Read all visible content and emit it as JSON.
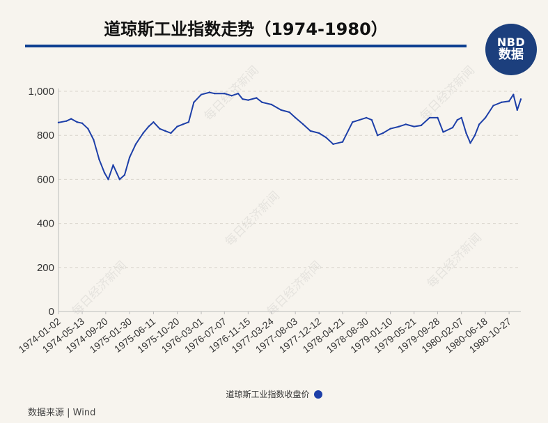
{
  "header": {
    "title": "道琼斯工业指数走势（1974-1980）",
    "logo_line1": "NBD",
    "logo_line2": "数据"
  },
  "watermark": "每日经济新闻",
  "footer": {
    "source": "数据来源 | Wind"
  },
  "colors": {
    "line": "#1d3fa8",
    "title_rule": "#0d3f91",
    "logo_bg": "#1c3f7d",
    "background": "#f7f4ee"
  },
  "chart_data": {
    "type": "line",
    "title": "道琼斯工业指数走势（1974-1980）",
    "ylim": [
      0,
      1000
    ],
    "y_ticks": [
      "0",
      "200",
      "400",
      "600",
      "800",
      "1,000"
    ],
    "y_tick_values": [
      0,
      200,
      400,
      600,
      800,
      1000
    ],
    "grid": true,
    "legend_position": "bottom",
    "x_tick_labels": [
      "1974-01-02",
      "1974-05-13",
      "1974-09-20",
      "1975-01-30",
      "1975-06-11",
      "1975-10-20",
      "1976-03-01",
      "1976-07-07",
      "1976-11-15",
      "1977-03-24",
      "1977-08-03",
      "1977-12-12",
      "1978-04-21",
      "1978-08-30",
      "1979-01-10",
      "1979-05-21",
      "1979-09-28",
      "1980-02-07",
      "1980-06-18",
      "1980-10-27"
    ],
    "series": [
      {
        "name": "道琼斯工业指数收盘价",
        "color": "#1d3fa8",
        "x": [
          "1974-01-02",
          "1974-02-15",
          "1974-03-13",
          "1974-04-15",
          "1974-05-13",
          "1974-06-14",
          "1974-07-15",
          "1974-08-15",
          "1974-09-13",
          "1974-10-04",
          "1974-10-31",
          "1974-12-06",
          "1975-01-02",
          "1975-01-30",
          "1975-03-05",
          "1975-04-15",
          "1975-05-15",
          "1975-06-11",
          "1975-07-15",
          "1975-08-15",
          "1975-09-15",
          "1975-10-20",
          "1975-11-20",
          "1975-12-22",
          "1976-01-20",
          "1976-03-01",
          "1976-04-15",
          "1976-05-14",
          "1976-07-07",
          "1976-08-16",
          "1976-09-21",
          "1976-10-15",
          "1976-11-15",
          "1976-12-31",
          "1977-01-31",
          "1977-03-24",
          "1977-05-16",
          "1977-07-01",
          "1977-08-03",
          "1977-09-15",
          "1977-10-25",
          "1977-12-12",
          "1978-01-20",
          "1978-02-28",
          "1978-04-21",
          "1978-06-15",
          "1978-08-30",
          "1978-09-29",
          "1978-10-31",
          "1978-11-30",
          "1979-01-10",
          "1979-02-27",
          "1979-04-05",
          "1979-05-21",
          "1979-06-29",
          "1979-08-15",
          "1979-09-28",
          "1979-10-29",
          "1979-12-20",
          "1980-01-15",
          "1980-02-07",
          "1980-03-04",
          "1980-03-27",
          "1980-04-21",
          "1980-05-15",
          "1980-06-18",
          "1980-08-01",
          "1980-09-15",
          "1980-10-27",
          "1980-11-20",
          "1980-12-11",
          "1980-12-31"
        ],
        "values": [
          858,
          865,
          875,
          860,
          855,
          830,
          780,
          690,
          630,
          600,
          665,
          600,
          620,
          700,
          760,
          810,
          840,
          860,
          830,
          820,
          810,
          840,
          850,
          860,
          950,
          985,
          995,
          990,
          990,
          980,
          990,
          965,
          960,
          970,
          950,
          940,
          915,
          905,
          880,
          850,
          820,
          810,
          790,
          760,
          770,
          860,
          880,
          870,
          800,
          810,
          830,
          840,
          850,
          840,
          845,
          880,
          880,
          815,
          835,
          870,
          880,
          810,
          765,
          800,
          850,
          880,
          935,
          950,
          955,
          985,
          915,
          964
        ]
      }
    ]
  }
}
